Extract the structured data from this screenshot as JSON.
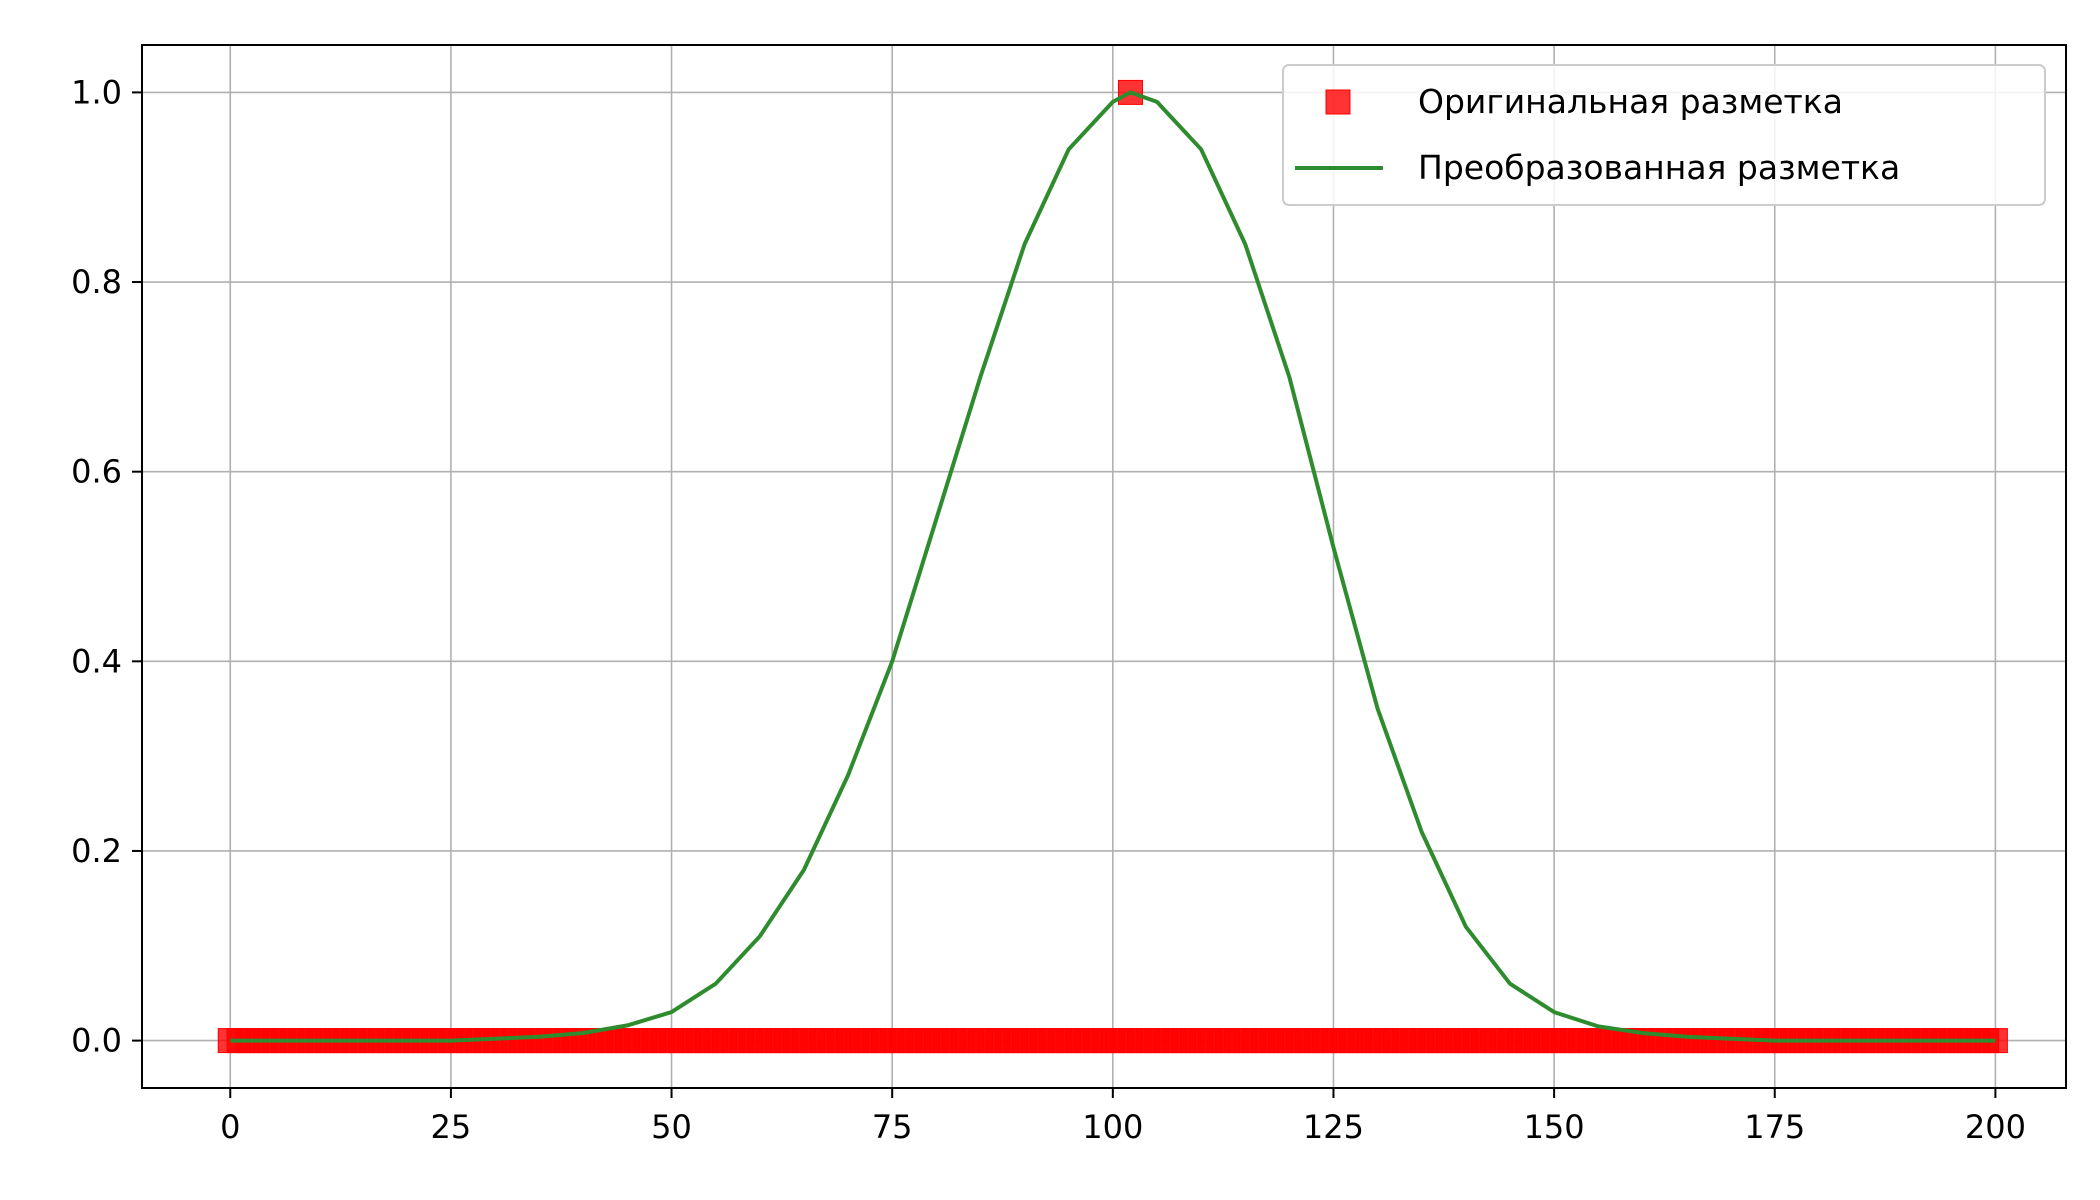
{
  "chart_data": {
    "type": "line",
    "title": "",
    "xlabel": "",
    "ylabel": "",
    "xlim": [
      -10,
      208
    ],
    "ylim": [
      -0.05,
      1.05
    ],
    "xticks": [
      0,
      25,
      50,
      75,
      100,
      125,
      150,
      175,
      200
    ],
    "yticks": [
      0.0,
      0.2,
      0.4,
      0.6,
      0.8,
      1.0
    ],
    "xtick_labels": [
      "0",
      "25",
      "50",
      "75",
      "100",
      "125",
      "150",
      "175",
      "200"
    ],
    "ytick_labels": [
      "0.0",
      "0.2",
      "0.4",
      "0.6",
      "0.8",
      "1.0"
    ],
    "grid": true,
    "legend_position": "top-right",
    "series": [
      {
        "name": "Оригинальная разметка",
        "kind": "scatter",
        "marker": "square",
        "color": "#ff0000",
        "x_range": [
          0,
          200
        ],
        "baseline_value": 0.0,
        "peak_points": [
          {
            "x": 102,
            "y": 1.0
          }
        ]
      },
      {
        "name": "Преобразованная разметка",
        "kind": "line",
        "color": "#2e8b2e",
        "x": [
          0,
          5,
          10,
          15,
          20,
          25,
          30,
          35,
          40,
          45,
          50,
          55,
          60,
          65,
          70,
          75,
          80,
          85,
          90,
          95,
          100,
          102,
          105,
          110,
          115,
          120,
          125,
          130,
          135,
          140,
          145,
          150,
          155,
          160,
          165,
          170,
          175,
          180,
          185,
          190,
          195,
          200
        ],
        "y": [
          0.0,
          0.0,
          0.0,
          0.0,
          0.0,
          0.0,
          0.002,
          0.004,
          0.008,
          0.016,
          0.03,
          0.06,
          0.11,
          0.18,
          0.28,
          0.4,
          0.55,
          0.7,
          0.84,
          0.94,
          0.99,
          1.0,
          0.99,
          0.94,
          0.84,
          0.7,
          0.52,
          0.35,
          0.22,
          0.12,
          0.06,
          0.03,
          0.015,
          0.008,
          0.004,
          0.002,
          0.0,
          0.0,
          0.0,
          0.0,
          0.0,
          0.0
        ]
      }
    ]
  }
}
